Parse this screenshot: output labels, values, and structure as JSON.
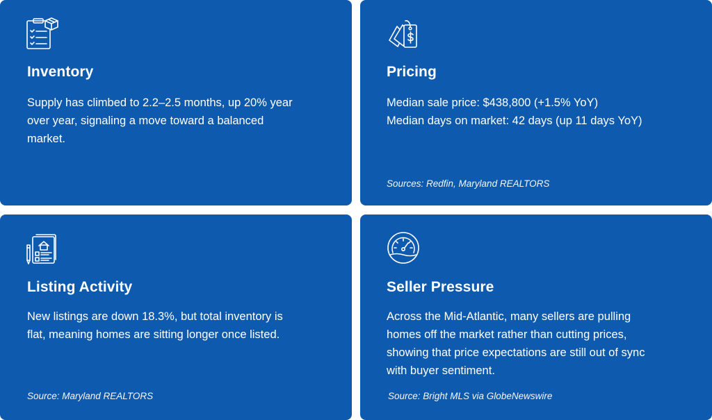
{
  "colors": {
    "card_background": "#0E5AAE",
    "text": "#FFFFFF",
    "page_background": "#FFFFFF"
  },
  "cards": [
    {
      "icon": "clipboard-checklist-box-icon",
      "title": "Inventory",
      "body_lines": [
        "Supply has climbed to 2.2–2.5 months, up 20% year",
        "over year, signaling a move toward a balanced",
        "market."
      ],
      "source": ""
    },
    {
      "icon": "price-tag-dollar-icon",
      "title": "Pricing",
      "body_lines": [
        "Median sale price: $438,800 (+1.5% YoY)",
        "Median days on market: 42 days (up 11 days YoY)"
      ],
      "source": "Sources: Redfin, Maryland REALTORS"
    },
    {
      "icon": "listing-document-house-icon",
      "title": "Listing Activity",
      "body_lines": [
        "New listings are down 18.3%, but total inventory is",
        "flat, meaning homes are sitting longer once listed."
      ],
      "source": "Source: Maryland REALTORS"
    },
    {
      "icon": "pressure-gauge-icon",
      "title": "Seller Pressure",
      "body_lines": [
        "Across the Mid-Atlantic, many sellers are pulling",
        "homes off the market rather than cutting prices,",
        "showing that price expectations are still out of sync",
        "with buyer sentiment."
      ],
      "source": "Source: Bright MLS via GlobeNewswire"
    }
  ]
}
